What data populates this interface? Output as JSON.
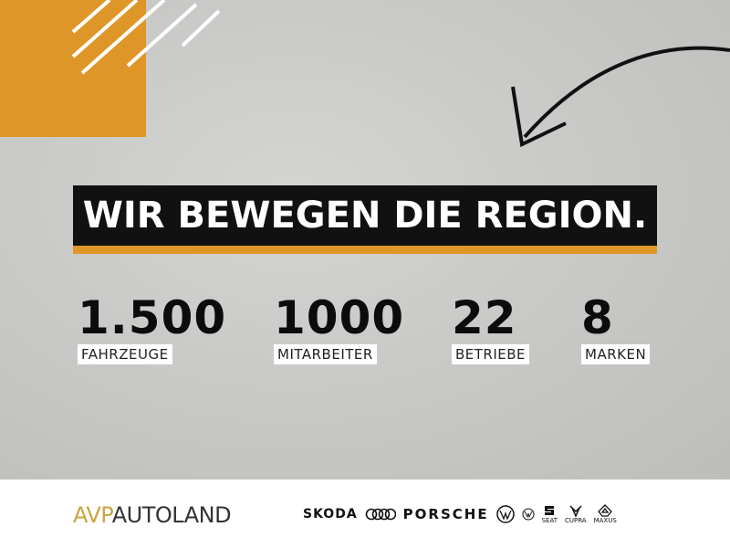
{
  "headline": "WIR BEWEGEN DIE REGION.",
  "stats": [
    {
      "value": "1.500",
      "label": "FAHRZEUGE"
    },
    {
      "value": "1000",
      "label": "MITARBEITER"
    },
    {
      "value": "22",
      "label": "BETRIEBE"
    },
    {
      "value": "8",
      "label": "MARKEN"
    }
  ],
  "logo": {
    "part1": "AVP",
    "part2": "AUTOLAND"
  },
  "brands": [
    "SKODA",
    "Audi",
    "PORSCHE",
    "Volkswagen",
    "Volkswagen Nutzfahrzeuge",
    "SEAT",
    "CUPRA",
    "MAXUS"
  ],
  "brand_labels": {
    "seat": "SEAT",
    "cupra": "CUPRA",
    "maxus": "MAXUS"
  },
  "colors": {
    "accent": "#df9628",
    "banner": "#111111",
    "background": "#c8c8c6",
    "logo_gold": "#c9a441"
  }
}
